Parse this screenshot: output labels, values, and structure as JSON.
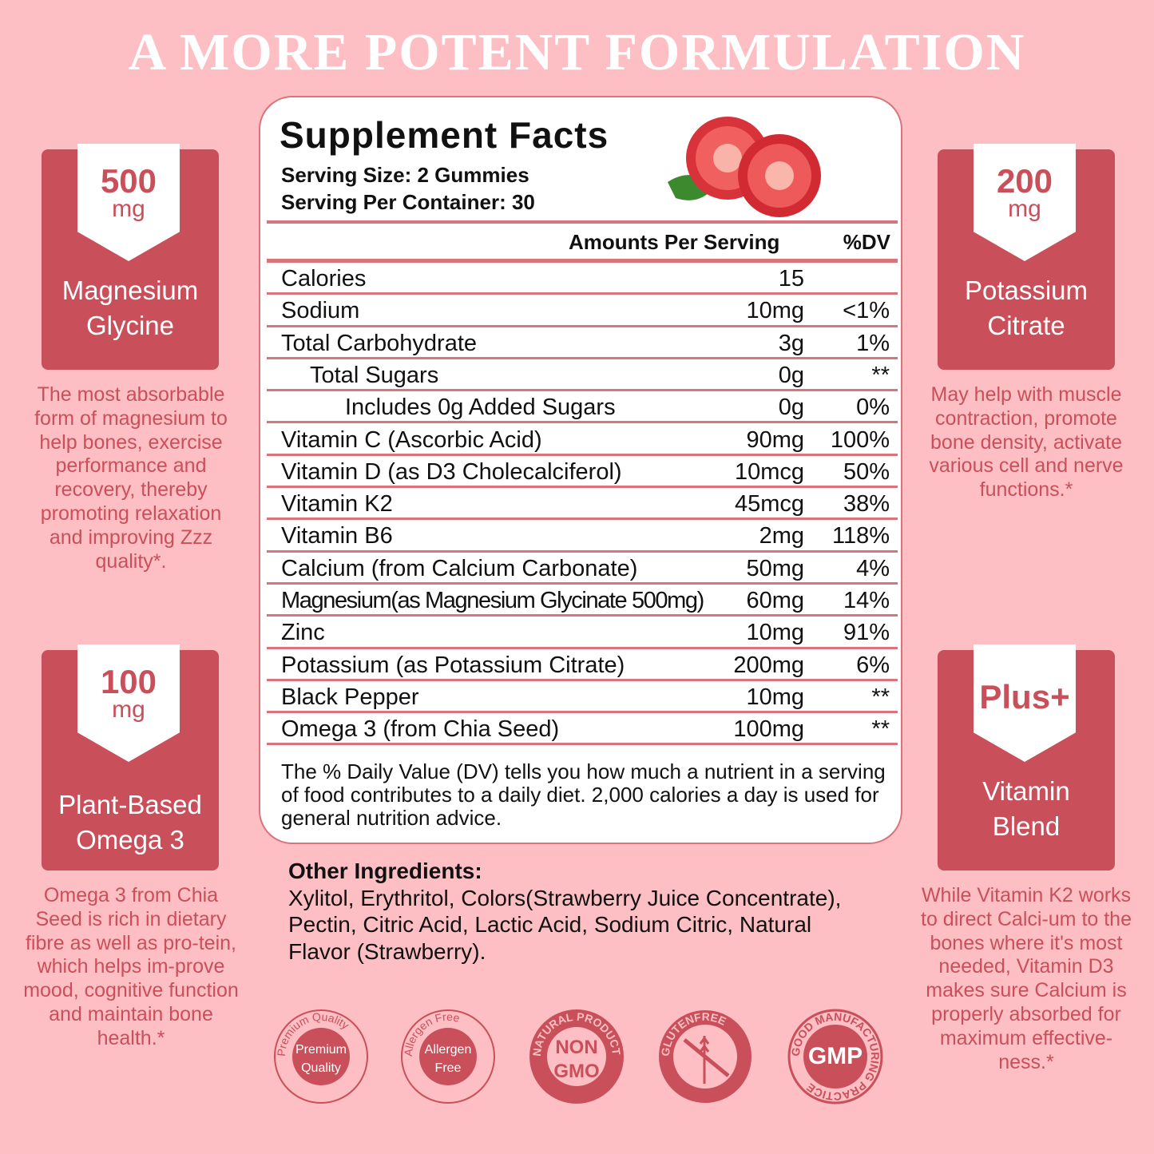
{
  "title": "A MORE POTENT FORMULATION",
  "cards": [
    {
      "amount": "500",
      "unit": "mg",
      "label1": "Magnesium",
      "label2": "Glycine",
      "desc": "The most absorbable form of magnesium to help bones, exercise performance and recovery, thereby promoting relaxation and improving Zzz quality*."
    },
    {
      "amount": "200",
      "unit": "mg",
      "label1": "Potassium",
      "label2": "Citrate",
      "desc": "May help with muscle contraction, promote bone density, activate various cell and nerve functions.*"
    },
    {
      "amount": "100",
      "unit": "mg",
      "label1": "Plant-Based",
      "label2": "Omega 3",
      "desc": "Omega 3 from Chia Seed is rich in dietary fibre as well as pro-tein, which helps im-prove mood, cognitive function and maintain bone health.*"
    },
    {
      "amount": "Plus+",
      "unit": "",
      "label1": "Vitamin",
      "label2": "Blend",
      "desc": "While Vitamin K2 works to direct Calci-um to the bones where it's most needed, Vitamin D3 makes sure Calcium is properly absorbed for maximum effective-ness.*"
    }
  ],
  "facts": {
    "title": "Supplement Facts",
    "serving_size": "Serving Size: 2 Gummies",
    "servings": "Serving Per Container: 30",
    "col_amount": "Amounts Per Serving",
    "col_dv": "%DV",
    "rows": [
      {
        "name": "Calories",
        "amount": "15",
        "dv": ""
      },
      {
        "name": "Sodium",
        "amount": "10mg",
        "dv": "<1%"
      },
      {
        "name": "Total Carbohydrate",
        "amount": "3g",
        "dv": "1%"
      },
      {
        "name": "Total Sugars",
        "amount": "0g",
        "dv": "**",
        "indent": 1
      },
      {
        "name": "Includes 0g Added Sugars",
        "amount": "0g",
        "dv": "0%",
        "indent": 2
      },
      {
        "name": "Vitamin C  (Ascorbic Acid)",
        "amount": "90mg",
        "dv": "100%"
      },
      {
        "name": "Vitamin D (as D3 Cholecalciferol)",
        "amount": "10mcg",
        "dv": "50%"
      },
      {
        "name": "Vitamin K2",
        "amount": "45mcg",
        "dv": "38%"
      },
      {
        "name": "Vitamin B6",
        "amount": "2mg",
        "dv": "118%"
      },
      {
        "name": "Calcium (from Calcium Carbonate)",
        "amount": "50mg",
        "dv": "4%"
      },
      {
        "name": "Magnesium(as Magnesium Glycinate 500mg)",
        "amount": "60mg",
        "dv": "14%",
        "condensed": true
      },
      {
        "name": "Zinc",
        "amount": "10mg",
        "dv": "91%"
      },
      {
        "name": "Potassium (as Potassium Citrate)",
        "amount": "200mg",
        "dv": "6%"
      },
      {
        "name": "Black Pepper",
        "amount": "10mg",
        "dv": "**"
      },
      {
        "name": "Omega 3 (from Chia Seed)",
        "amount": "100mg",
        "dv": "**"
      }
    ],
    "note": "The % Daily Value (DV) tells you how much a nutrient in a serving of food contributes to a daily diet. 2,000 calories a day is used for general nutrition advice."
  },
  "other": {
    "heading": "Other Ingredients:",
    "text": "Xylitol, Erythritol, Colors(Strawberry Juice Concentrate), Pectin, Citric Acid, Lactic Acid, Sodium Citric, Natural Flavor (Strawberry)."
  },
  "badges": [
    {
      "ring": "Premium Quality",
      "center1": "Premium",
      "center2": "Quality"
    },
    {
      "ring": "Allergen Free",
      "center1": "Allergen",
      "center2": "Free"
    },
    {
      "ring": "NATURAL PRODUCT",
      "center1": "NON",
      "center2": "GMO"
    },
    {
      "ring": "GLUTENFREE",
      "center1": "",
      "center2": ""
    },
    {
      "ring": "GOOD MANUFACTURING PRACTICE",
      "center1": "GMP",
      "center2": ""
    }
  ],
  "colors": {
    "background": "#fdbfc3",
    "accent": "#c94f5a",
    "white": "#ffffff"
  }
}
